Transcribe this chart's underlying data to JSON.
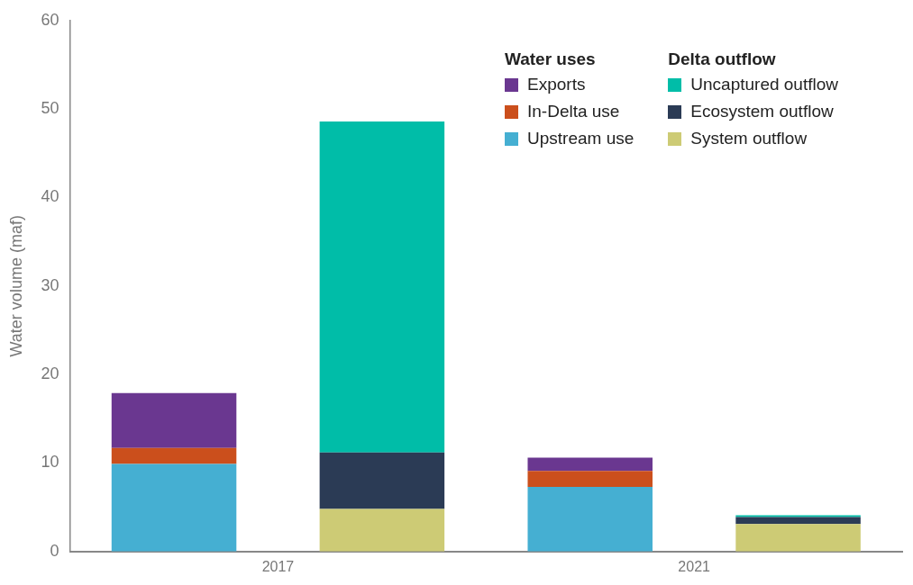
{
  "chart_data": {
    "type": "bar",
    "stacked": true,
    "categories": [
      "2017",
      null,
      "2021",
      null
    ],
    "ylabel": "Water volume (maf)",
    "ylim": [
      0,
      60
    ],
    "yticks": [
      0,
      10,
      20,
      30,
      40,
      50,
      60
    ],
    "grid": false,
    "legend": "top right",
    "legend_title": [
      "Water uses",
      "Delta outflow"
    ],
    "series": [
      {
        "name": "Upstream use",
        "color": "#45afd2",
        "values": [
          9.9,
          null,
          7.3,
          null
        ]
      },
      {
        "name": "In-Delta use",
        "color": "#cb4f1c",
        "values": [
          1.8,
          null,
          1.8,
          null
        ]
      },
      {
        "name": "Exports",
        "color": "#6a3790",
        "values": [
          6.2,
          null,
          1.5,
          null
        ]
      },
      {
        "name": "System outflow",
        "color": "#cdcb75",
        "values": [
          null,
          4.8,
          null,
          3.1
        ]
      },
      {
        "name": "Ecosystem outflow",
        "color": "#2b3b55",
        "values": [
          null,
          6.4,
          null,
          0.8
        ]
      },
      {
        "name": "Uncaptured outflow",
        "color": "#00bda8",
        "values": [
          null,
          37.4,
          null,
          0.2
        ]
      }
    ]
  }
}
